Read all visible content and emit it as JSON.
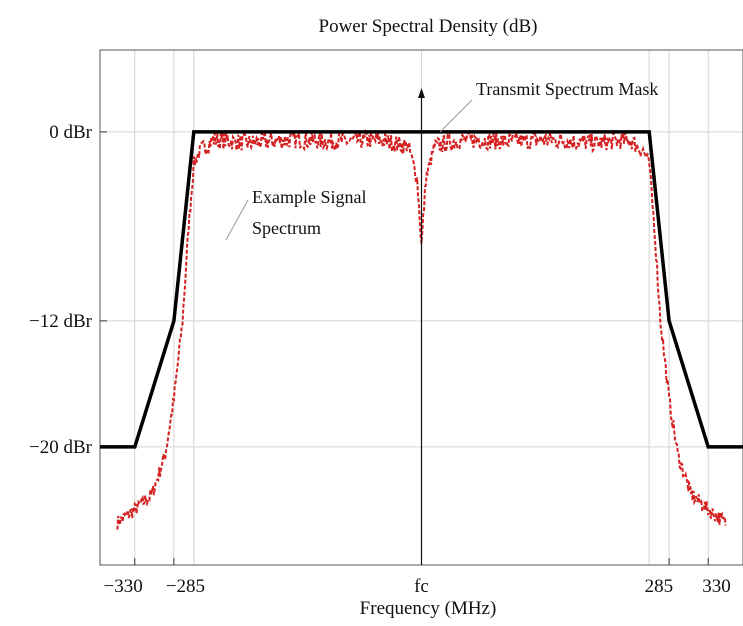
{
  "chart_data": {
    "type": "line",
    "title": "Power Spectral Density (dB)",
    "xlabel": "Frequency (MHz)",
    "ylabel": "",
    "xlim": [
      -370,
      370
    ],
    "ylim": [
      -27.5,
      5.2
    ],
    "grid": true,
    "x_ticks": [
      {
        "value": -330,
        "label": "−330"
      },
      {
        "value": -285,
        "label": "−285"
      },
      {
        "value": 0,
        "label": "fc"
      },
      {
        "value": 285,
        "label": "285"
      },
      {
        "value": 330,
        "label": "330"
      }
    ],
    "x_extra_gridlines": [
      -262,
      262
    ],
    "y_ticks": [
      {
        "value": 0,
        "label": "0  dBr"
      },
      {
        "value": -12,
        "label": "−12 dBr"
      },
      {
        "value": -20,
        "label": "−20 dBr"
      }
    ],
    "series": [
      {
        "name": "Transmit Spectrum Mask",
        "color": "#000000",
        "style": "solid",
        "x": [
          -370,
          -330,
          -285,
          -262,
          262,
          285,
          330,
          370
        ],
        "y": [
          -20,
          -20,
          -12,
          0,
          0,
          -12,
          -20,
          -20
        ]
      },
      {
        "name": "Example Signal Spectrum",
        "color": "#d42020",
        "style": "dashed",
        "x": [
          -350,
          -330,
          -310,
          -295,
          -285,
          -275,
          -268,
          -262,
          -255,
          -250,
          -240,
          -200,
          -150,
          -100,
          -50,
          -15,
          -5,
          0,
          5,
          15,
          50,
          100,
          150,
          200,
          240,
          250,
          255,
          262,
          268,
          275,
          285,
          295,
          310,
          330,
          350
        ],
        "y": [
          -24.8,
          -24,
          -23,
          -20.5,
          -17,
          -12,
          -6,
          -2,
          -1.2,
          -1,
          -0.5,
          -0.7,
          -0.5,
          -0.6,
          -0.5,
          -0.9,
          -3,
          -7.2,
          -3,
          -0.9,
          -0.5,
          -0.6,
          -0.5,
          -0.7,
          -0.5,
          -1,
          -1.2,
          -2,
          -6,
          -12,
          -17,
          -20.5,
          -23,
          -24,
          -24.8
        ]
      }
    ],
    "annotations": [
      {
        "text": "Transmit Spectrum Mask",
        "points_to": "mask top edge near fc"
      },
      {
        "text": "Example Signal",
        "points_to": "signal left shoulder"
      },
      {
        "text": "Spectrum",
        "points_to": "signal left shoulder"
      }
    ],
    "center_arrow": {
      "x": 0,
      "label": "fc"
    }
  }
}
